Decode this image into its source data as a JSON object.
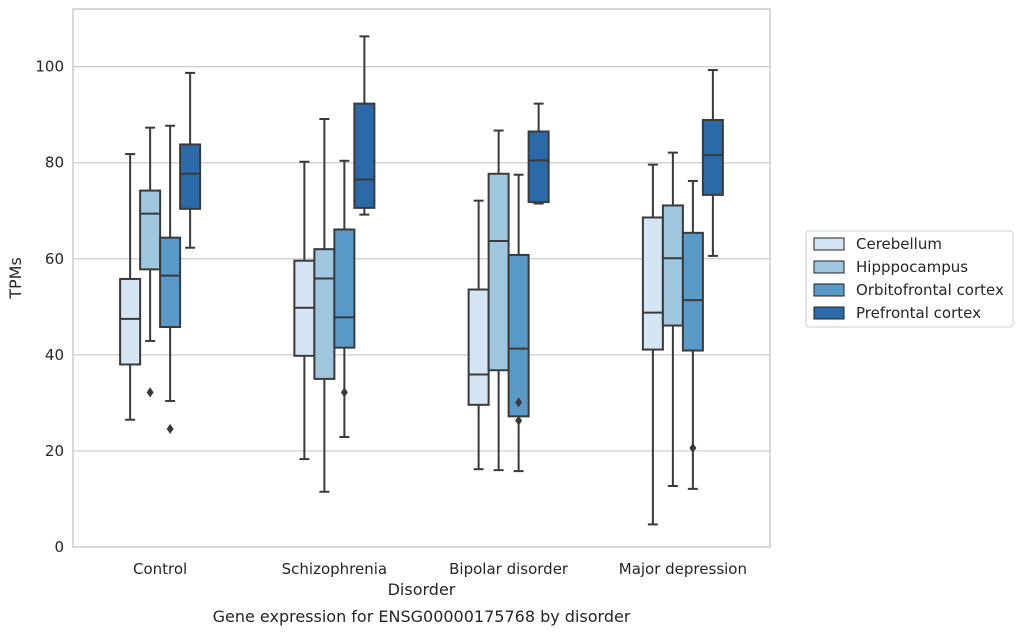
{
  "chart_data": {
    "type": "box",
    "xlabel": "Disorder",
    "ylabel": "TPMs",
    "caption": "Gene expression for ENSG00000175768 by disorder",
    "ylim": [
      0,
      112
    ],
    "yticks": [
      0,
      20,
      40,
      60,
      80,
      100
    ],
    "grid": "horizontal",
    "legend_position": "right",
    "categories": [
      "Control",
      "Schizophrenia",
      "Bipolar disorder",
      "Major depression"
    ],
    "series": [
      {
        "name": "Cerebellum",
        "color": "#d6e5f3",
        "boxes": [
          {
            "whislo": 26.5,
            "q1": 38,
            "med": 47.5,
            "q3": 55.8,
            "whishi": 81.8,
            "fliers": []
          },
          {
            "whislo": 18.3,
            "q1": 39.8,
            "med": 49.8,
            "q3": 59.6,
            "whishi": 80.2,
            "fliers": []
          },
          {
            "whislo": 16.2,
            "q1": 29.6,
            "med": 35.9,
            "q3": 53.6,
            "whishi": 72.1,
            "fliers": []
          },
          {
            "whislo": 4.7,
            "q1": 41.1,
            "med": 48.8,
            "q3": 68.6,
            "whishi": 79.6,
            "fliers": []
          }
        ]
      },
      {
        "name": "Hipppocampus",
        "color": "#9fc7df",
        "boxes": [
          {
            "whislo": 42.9,
            "q1": 57.8,
            "med": 69.4,
            "q3": 74.2,
            "whishi": 87.3,
            "fliers": [
              32.2
            ]
          },
          {
            "whislo": 11.5,
            "q1": 35,
            "med": 55.9,
            "q3": 62,
            "whishi": 89.1,
            "fliers": []
          },
          {
            "whislo": 16,
            "q1": 36.8,
            "med": 63.7,
            "q3": 77.7,
            "whishi": 86.7,
            "fliers": []
          },
          {
            "whislo": 12.7,
            "q1": 46.1,
            "med": 60.1,
            "q3": 71.1,
            "whishi": 82.1,
            "fliers": []
          }
        ]
      },
      {
        "name": "Orbitofrontal cortex",
        "color": "#5a9ac8",
        "boxes": [
          {
            "whislo": 30.4,
            "q1": 45.8,
            "med": 56.5,
            "q3": 64.4,
            "whishi": 87.7,
            "fliers": [
              24.6
            ]
          },
          {
            "whislo": 22.9,
            "q1": 41.5,
            "med": 47.8,
            "q3": 66.1,
            "whishi": 80.4,
            "fliers": [
              32.2
            ]
          },
          {
            "whislo": 15.8,
            "q1": 27.2,
            "med": 41.3,
            "q3": 60.8,
            "whishi": 77.5,
            "fliers": [
              30.1,
              26.3
            ]
          },
          {
            "whislo": 12.1,
            "q1": 40.9,
            "med": 51.4,
            "q3": 65.4,
            "whishi": 76.2,
            "fliers": [
              20.6
            ]
          }
        ]
      },
      {
        "name": "Prefrontal cortex",
        "color": "#2b69a8",
        "boxes": [
          {
            "whislo": 62.3,
            "q1": 70.4,
            "med": 77.7,
            "q3": 83.8,
            "whishi": 98.7,
            "fliers": []
          },
          {
            "whislo": 69.2,
            "q1": 70.6,
            "med": 76.5,
            "q3": 92.3,
            "whishi": 106.3,
            "fliers": []
          },
          {
            "whislo": 71.5,
            "q1": 71.8,
            "med": 80.5,
            "q3": 86.5,
            "whishi": 92.3,
            "fliers": []
          },
          {
            "whislo": 60.6,
            "q1": 73.3,
            "med": 81.6,
            "q3": 88.9,
            "whishi": 99.3,
            "fliers": []
          }
        ]
      }
    ]
  }
}
